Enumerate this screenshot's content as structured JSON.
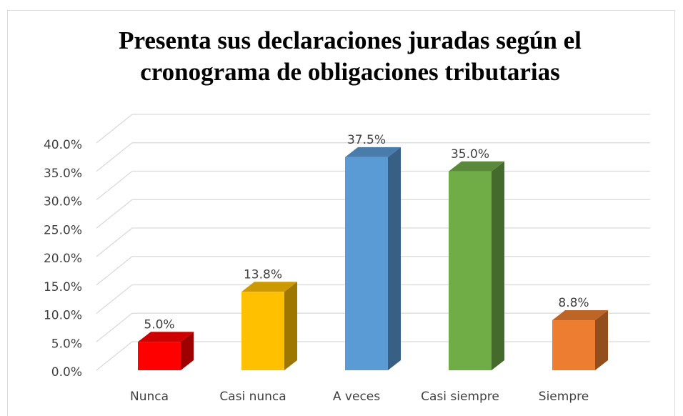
{
  "chart_data": {
    "type": "bar3d",
    "title": "Presenta sus declaraciones juradas según el",
    "subtitle": "cronograma de obligaciones tributarias",
    "categories": [
      "Nunca",
      "Casi nunca",
      "A veces",
      "Casi siempre",
      "Siempre"
    ],
    "values": [
      5.0,
      13.8,
      37.5,
      35.0,
      8.8
    ],
    "value_labels": [
      "5.0%",
      "13.8%",
      "37.5%",
      "35.0%",
      "8.8%"
    ],
    "colors": [
      "#ff0000",
      "#ffc000",
      "#5b9bd5",
      "#70ad47",
      "#ed7d31"
    ],
    "ylim": [
      0,
      40
    ],
    "yticks": [
      {
        "value": 0,
        "label": "0.0%"
      },
      {
        "value": 5,
        "label": "5.0%"
      },
      {
        "value": 10,
        "label": "10.0%"
      },
      {
        "value": 15,
        "label": "15.0%"
      },
      {
        "value": 20,
        "label": "20.0%"
      },
      {
        "value": 25,
        "label": "25.0%"
      },
      {
        "value": 30,
        "label": "30.0%"
      },
      {
        "value": 35,
        "label": "35.0%"
      },
      {
        "value": 40,
        "label": "40.0%"
      }
    ],
    "grid": true
  }
}
